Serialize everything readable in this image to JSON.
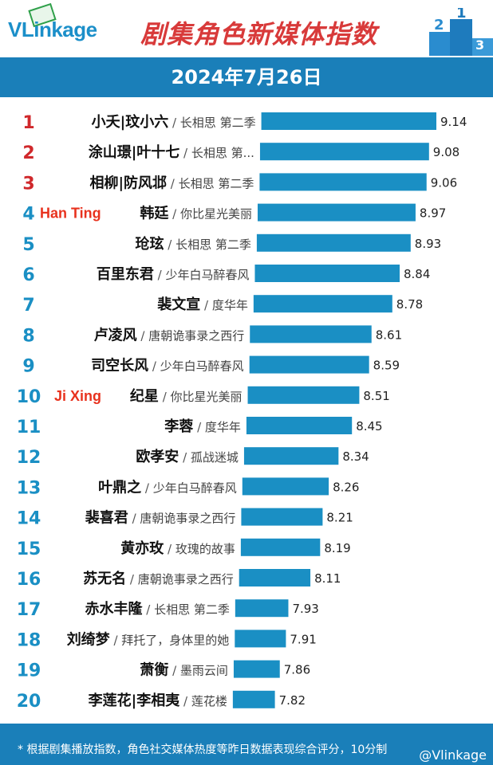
{
  "header": {
    "logo": "VLinkage",
    "title": "剧集角色新媒体指数",
    "podium_labels": [
      "2",
      "1",
      "3"
    ]
  },
  "date": "2024年7月26日",
  "footer": {
    "note": "* 根据剧集播放指数，角色社交媒体热度等昨日数据表现综合评分，10分制",
    "credit": "@Vlinkage"
  },
  "colors": {
    "bar": "#1a8fc4",
    "rank_top": "#d0282b",
    "rank_other": "#1a8fc4",
    "annotation": "#e8321e",
    "header_band": "#1a7fb9"
  },
  "chart_data": {
    "type": "bar",
    "orientation": "horizontal",
    "xlim": [
      7.64,
      9.14
    ],
    "categories": [
      {
        "rank": "1",
        "role": "小夭|玟小六",
        "drama": "长相思 第二季",
        "annotation": ""
      },
      {
        "rank": "2",
        "role": "涂山璟|叶十七",
        "drama": "长相思 第...",
        "annotation": ""
      },
      {
        "rank": "3",
        "role": "相柳|防风邶",
        "drama": "长相思 第二季",
        "annotation": ""
      },
      {
        "rank": "4",
        "role": "韩廷",
        "drama": "你比星光美丽",
        "annotation": "Han Ting"
      },
      {
        "rank": "5",
        "role": "玱玹",
        "drama": "长相思 第二季",
        "annotation": ""
      },
      {
        "rank": "6",
        "role": "百里东君",
        "drama": "少年白马醉春风",
        "annotation": ""
      },
      {
        "rank": "7",
        "role": "裴文宣",
        "drama": "度华年",
        "annotation": ""
      },
      {
        "rank": "8",
        "role": "卢凌风",
        "drama": "唐朝诡事录之西行",
        "annotation": ""
      },
      {
        "rank": "9",
        "role": "司空长风",
        "drama": "少年白马醉春风",
        "annotation": ""
      },
      {
        "rank": "10",
        "role": "纪星",
        "drama": "你比星光美丽",
        "annotation": "Ji Xing"
      },
      {
        "rank": "11",
        "role": "李蓉",
        "drama": "度华年",
        "annotation": ""
      },
      {
        "rank": "12",
        "role": "欧孝安",
        "drama": "孤战迷城",
        "annotation": ""
      },
      {
        "rank": "13",
        "role": "叶鼎之",
        "drama": "少年白马醉春风",
        "annotation": ""
      },
      {
        "rank": "14",
        "role": "裴喜君",
        "drama": "唐朝诡事录之西行",
        "annotation": ""
      },
      {
        "rank": "15",
        "role": "黄亦玫",
        "drama": "玫瑰的故事",
        "annotation": ""
      },
      {
        "rank": "16",
        "role": "苏无名",
        "drama": "唐朝诡事录之西行",
        "annotation": ""
      },
      {
        "rank": "17",
        "role": "赤水丰隆",
        "drama": "长相思 第二季",
        "annotation": ""
      },
      {
        "rank": "18",
        "role": "刘绮梦",
        "drama": "拜托了，身体里的她",
        "annotation": ""
      },
      {
        "rank": "19",
        "role": "萧衡",
        "drama": "墨雨云间",
        "annotation": ""
      },
      {
        "rank": "20",
        "role": "李莲花|李相夷",
        "drama": "莲花楼",
        "annotation": ""
      }
    ],
    "values": [
      "9.14",
      "9.08",
      "9.06",
      "8.97",
      "8.93",
      "8.84",
      "8.78",
      "8.61",
      "8.59",
      "8.51",
      "8.45",
      "8.34",
      "8.26",
      "8.21",
      "8.19",
      "8.11",
      "7.93",
      "7.91",
      "7.86",
      "7.82"
    ]
  }
}
